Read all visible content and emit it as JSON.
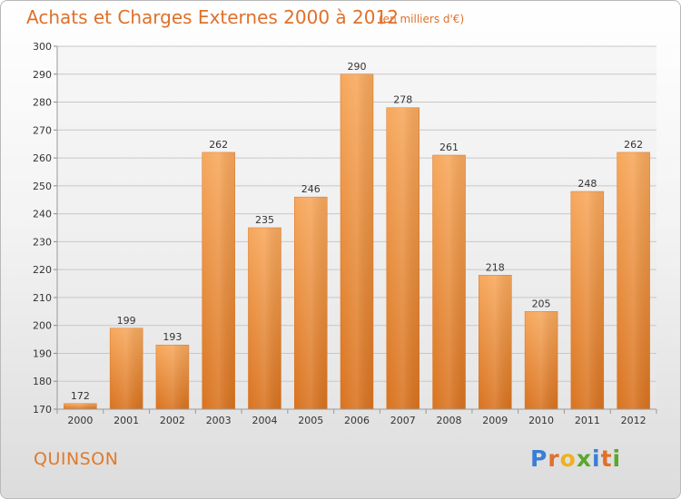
{
  "header": {
    "title": "Achats et Charges Externes 2000 à 2012",
    "unit": "(en milliers d'€)"
  },
  "footer": {
    "city": "QUINSON",
    "logo": "Proxiti"
  },
  "colors": {
    "bar": "#f0883a",
    "bar_light": "#f7a75c",
    "title": "#e0702a",
    "logo_letters": [
      "#3a7fd4",
      "#e0702a",
      "#f0b020",
      "#5aa82a",
      "#3a7fd4",
      "#e0702a",
      "#5aa82a"
    ]
  },
  "chart_data": {
    "type": "bar",
    "title": "Achats et Charges Externes 2000 à 2012",
    "categories": [
      "2000",
      "2001",
      "2002",
      "2003",
      "2004",
      "2005",
      "2006",
      "2007",
      "2008",
      "2009",
      "2010",
      "2011",
      "2012"
    ],
    "values": [
      172,
      199,
      193,
      262,
      235,
      246,
      290,
      278,
      261,
      218,
      205,
      248,
      262
    ],
    "ylim": [
      170,
      300
    ],
    "yticks": [
      170,
      180,
      190,
      200,
      210,
      220,
      230,
      240,
      250,
      260,
      270,
      280,
      290,
      300
    ],
    "grid": true,
    "legend": "none"
  }
}
